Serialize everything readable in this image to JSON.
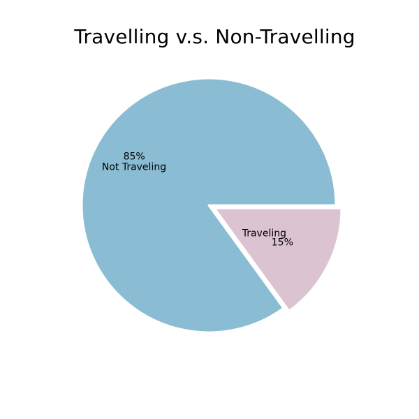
{
  "chart_data": {
    "type": "pie",
    "title": "Travelling v.s. Non-Travelling",
    "slices": [
      {
        "label": "Traveling",
        "value": 15,
        "pct_label": "15%",
        "color": "#dcc3d1",
        "exploded": true
      },
      {
        "label": "Not Traveling",
        "value": 85,
        "pct_label": "85%",
        "color": "#8abdd3",
        "exploded": false
      }
    ],
    "start_angle_deg": 0,
    "direction": "clockwise",
    "edge_color": "#ffffff"
  }
}
